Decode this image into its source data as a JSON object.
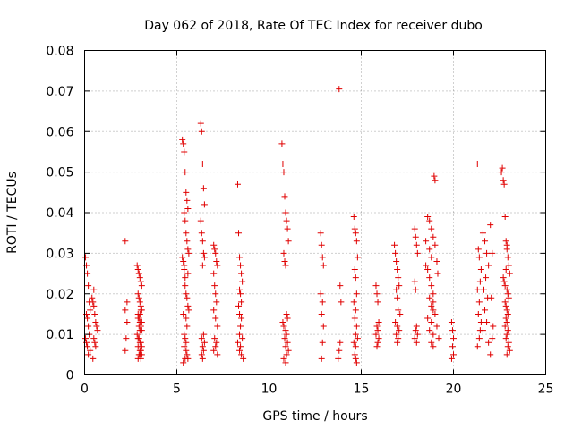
{
  "chart_data": {
    "type": "scatter",
    "title": "Day 062 of 2018, Rate Of TEC Index for receiver dubo",
    "xlabel": "GPS time / hours",
    "ylabel": "ROTI / TECUs",
    "xlim": [
      0,
      25
    ],
    "ylim": [
      0,
      0.08
    ],
    "x_ticks": [
      0,
      5,
      10,
      15,
      20,
      25
    ],
    "y_ticks": [
      0,
      0.01,
      0.02,
      0.03,
      0.04,
      0.05,
      0.06,
      0.07,
      0.08
    ],
    "x_tick_labels": [
      "0",
      "5",
      "10",
      "15",
      "20",
      "25"
    ],
    "y_tick_labels": [
      "0",
      "0.01",
      "0.02",
      "0.03",
      "0.04",
      "0.05",
      "0.06",
      "0.07",
      "0.08"
    ],
    "grid": true,
    "marker": "plus",
    "color": "#e00000",
    "series": [
      {
        "x": [
          0.05,
          0.1,
          0.15,
          0.2,
          0.25,
          0.3,
          0.1,
          0.15,
          0.2,
          0.25,
          0.05,
          0.1,
          0.15,
          0.3,
          0.2,
          0.4,
          0.45,
          0.5,
          0.55,
          0.6,
          0.65,
          0.7,
          0.5,
          0.55,
          0.6,
          0.45,
          0.5,
          2.2,
          2.3,
          2.2,
          2.3,
          2.25,
          2.2,
          2.85,
          2.9,
          2.95,
          3.0,
          3.05,
          3.1,
          2.9,
          2.95,
          3.0,
          3.05,
          3.1,
          2.9,
          2.95,
          3.0,
          3.05,
          3.1,
          2.85,
          2.9,
          2.95,
          3.0,
          3.05,
          3.1,
          2.9,
          3.0,
          3.05,
          2.95,
          3.1,
          3.0,
          2.9,
          3.05,
          3.0,
          2.95,
          3.1,
          2.9,
          3.0,
          3.05,
          5.3,
          5.35,
          5.4,
          5.45,
          5.5,
          5.55,
          5.6,
          5.4,
          5.45,
          5.5,
          5.55,
          5.6,
          5.65,
          5.3,
          5.35,
          5.4,
          5.45,
          5.5,
          5.55,
          5.6,
          5.65,
          5.35,
          5.4,
          5.45,
          5.5,
          5.4,
          5.5,
          5.55,
          5.6,
          5.45,
          5.35,
          5.55,
          5.5,
          5.45,
          5.6,
          5.4,
          6.3,
          6.35,
          6.4,
          6.45,
          6.5,
          6.3,
          6.35,
          6.4,
          6.45,
          6.5,
          6.4,
          6.45,
          6.35,
          6.5,
          6.4,
          6.45,
          6.35,
          6.4,
          7.0,
          7.05,
          7.1,
          7.15,
          7.2,
          7.0,
          7.05,
          7.1,
          7.15,
          7.0,
          7.1,
          7.2,
          7.05,
          7.15,
          7.1,
          7.0,
          7.2,
          8.3,
          8.35,
          8.4,
          8.45,
          8.5,
          8.55,
          8.4,
          8.45,
          8.5,
          8.35,
          8.4,
          8.5,
          8.45,
          8.4,
          8.55,
          8.3,
          8.45,
          8.4,
          8.5,
          8.6,
          10.7,
          10.75,
          10.8,
          10.85,
          10.9,
          10.95,
          11.0,
          11.05,
          10.8,
          10.85,
          10.9,
          10.95,
          11.0,
          10.75,
          10.8,
          10.9,
          10.95,
          10.85,
          11.0,
          10.9,
          11.05,
          10.95,
          10.8,
          10.9,
          12.8,
          12.85,
          12.9,
          12.95,
          12.8,
          12.9,
          12.85,
          12.95,
          12.9,
          12.85,
          13.8,
          13.85,
          13.9,
          13.85,
          13.8,
          13.75,
          14.6,
          14.65,
          14.7,
          14.75,
          14.8,
          14.65,
          14.7,
          14.75,
          14.6,
          14.7,
          14.65,
          14.75,
          14.7,
          14.8,
          14.6,
          14.7,
          14.65,
          14.7,
          14.75,
          15.8,
          15.85,
          15.9,
          15.95,
          15.85,
          15.9,
          15.8,
          15.95,
          15.9,
          15.85,
          16.8,
          16.85,
          16.9,
          16.95,
          17.0,
          17.05,
          16.9,
          16.95,
          17.0,
          17.1,
          16.85,
          16.95,
          17.05,
          16.9,
          17.0,
          16.95,
          17.9,
          17.95,
          18.0,
          18.05,
          17.9,
          17.95,
          18.0,
          17.95,
          18.05,
          17.9,
          18.0,
          18.5,
          18.6,
          18.7,
          18.8,
          18.9,
          19.0,
          19.1,
          18.6,
          18.7,
          18.8,
          18.9,
          18.7,
          18.8,
          18.9,
          19.0,
          18.6,
          18.8,
          19.1,
          18.7,
          18.9,
          19.2,
          18.8,
          18.9,
          18.95,
          19.0,
          18.5,
          18.7,
          18.8,
          19.15,
          18.9,
          19.9,
          19.95,
          20.0,
          19.95,
          20.0,
          19.9,
          21.3,
          21.35,
          21.4,
          21.5,
          21.45,
          21.3,
          21.4,
          21.35,
          21.5,
          21.45,
          21.4,
          21.3,
          21.6,
          21.7,
          21.8,
          21.9,
          21.75,
          21.65,
          21.85,
          21.7,
          21.8,
          21.6,
          21.9,
          22.0,
          22.1,
          22.05,
          22.15,
          22.1,
          22.0,
          22.6,
          22.65,
          22.7,
          22.75,
          22.8,
          22.85,
          22.9,
          22.95,
          23.0,
          23.05,
          22.7,
          22.75,
          22.8,
          22.9,
          22.95,
          23.0,
          22.8,
          22.85,
          22.9,
          22.95,
          22.85,
          22.9,
          22.8,
          22.95,
          22.9,
          22.85,
          23.0,
          22.95,
          23.05,
          22.9,
          22.9,
          22.85
        ],
        "y": [
          0.029,
          0.027,
          0.025,
          0.022,
          0.018,
          0.016,
          0.015,
          0.014,
          0.012,
          0.01,
          0.009,
          0.008,
          0.007,
          0.006,
          0.005,
          0.019,
          0.018,
          0.017,
          0.015,
          0.013,
          0.012,
          0.011,
          0.009,
          0.008,
          0.007,
          0.004,
          0.021,
          0.033,
          0.018,
          0.016,
          0.013,
          0.009,
          0.006,
          0.027,
          0.026,
          0.025,
          0.024,
          0.023,
          0.022,
          0.02,
          0.019,
          0.018,
          0.017,
          0.016,
          0.015,
          0.014,
          0.013,
          0.012,
          0.011,
          0.01,
          0.009,
          0.009,
          0.008,
          0.008,
          0.007,
          0.007,
          0.006,
          0.006,
          0.005,
          0.005,
          0.005,
          0.004,
          0.004,
          0.011,
          0.012,
          0.013,
          0.014,
          0.015,
          0.016,
          0.058,
          0.057,
          0.055,
          0.05,
          0.045,
          0.043,
          0.041,
          0.04,
          0.038,
          0.035,
          0.033,
          0.031,
          0.03,
          0.029,
          0.028,
          0.026,
          0.024,
          0.02,
          0.019,
          0.017,
          0.016,
          0.015,
          0.01,
          0.009,
          0.008,
          0.007,
          0.006,
          0.005,
          0.004,
          0.004,
          0.003,
          0.012,
          0.014,
          0.022,
          0.025,
          0.027,
          0.062,
          0.06,
          0.052,
          0.046,
          0.042,
          0.038,
          0.035,
          0.033,
          0.03,
          0.029,
          0.027,
          0.01,
          0.009,
          0.008,
          0.007,
          0.006,
          0.005,
          0.004,
          0.032,
          0.031,
          0.03,
          0.028,
          0.027,
          0.025,
          0.022,
          0.02,
          0.018,
          0.016,
          0.014,
          0.012,
          0.009,
          0.008,
          0.007,
          0.006,
          0.005,
          0.047,
          0.035,
          0.029,
          0.027,
          0.025,
          0.023,
          0.021,
          0.02,
          0.018,
          0.017,
          0.015,
          0.014,
          0.012,
          0.01,
          0.009,
          0.008,
          0.007,
          0.006,
          0.005,
          0.004,
          0.057,
          0.052,
          0.05,
          0.044,
          0.04,
          0.038,
          0.036,
          0.033,
          0.03,
          0.028,
          0.027,
          0.015,
          0.014,
          0.013,
          0.012,
          0.011,
          0.01,
          0.009,
          0.008,
          0.007,
          0.006,
          0.005,
          0.004,
          0.003,
          0.035,
          0.032,
          0.029,
          0.027,
          0.02,
          0.018,
          0.015,
          0.012,
          0.008,
          0.004,
          0.0705,
          0.022,
          0.018,
          0.008,
          0.006,
          0.004,
          0.039,
          0.036,
          0.035,
          0.033,
          0.029,
          0.026,
          0.024,
          0.02,
          0.018,
          0.016,
          0.014,
          0.012,
          0.01,
          0.009,
          0.008,
          0.007,
          0.005,
          0.004,
          0.003,
          0.022,
          0.02,
          0.018,
          0.013,
          0.012,
          0.011,
          0.01,
          0.009,
          0.008,
          0.007,
          0.032,
          0.03,
          0.028,
          0.026,
          0.024,
          0.022,
          0.021,
          0.019,
          0.016,
          0.015,
          0.013,
          0.012,
          0.011,
          0.01,
          0.009,
          0.008,
          0.036,
          0.034,
          0.032,
          0.03,
          0.023,
          0.021,
          0.012,
          0.011,
          0.01,
          0.009,
          0.008,
          0.033,
          0.039,
          0.038,
          0.036,
          0.034,
          0.032,
          0.028,
          0.026,
          0.024,
          0.022,
          0.02,
          0.019,
          0.017,
          0.016,
          0.015,
          0.014,
          0.013,
          0.012,
          0.011,
          0.01,
          0.009,
          0.008,
          0.007,
          0.049,
          0.048,
          0.027,
          0.031,
          0.029,
          0.025,
          0.018,
          0.013,
          0.011,
          0.009,
          0.007,
          0.005,
          0.004,
          0.052,
          0.031,
          0.029,
          0.026,
          0.023,
          0.021,
          0.018,
          0.015,
          0.013,
          0.011,
          0.009,
          0.007,
          0.035,
          0.033,
          0.03,
          0.027,
          0.024,
          0.021,
          0.019,
          0.016,
          0.013,
          0.011,
          0.008,
          0.037,
          0.03,
          0.019,
          0.012,
          0.009,
          0.005,
          0.05,
          0.051,
          0.048,
          0.047,
          0.039,
          0.033,
          0.031,
          0.029,
          0.027,
          0.025,
          0.024,
          0.023,
          0.022,
          0.021,
          0.02,
          0.019,
          0.018,
          0.017,
          0.016,
          0.015,
          0.014,
          0.013,
          0.012,
          0.011,
          0.01,
          0.009,
          0.008,
          0.007,
          0.006,
          0.005,
          0.032,
          0.026
        ]
      }
    ]
  }
}
